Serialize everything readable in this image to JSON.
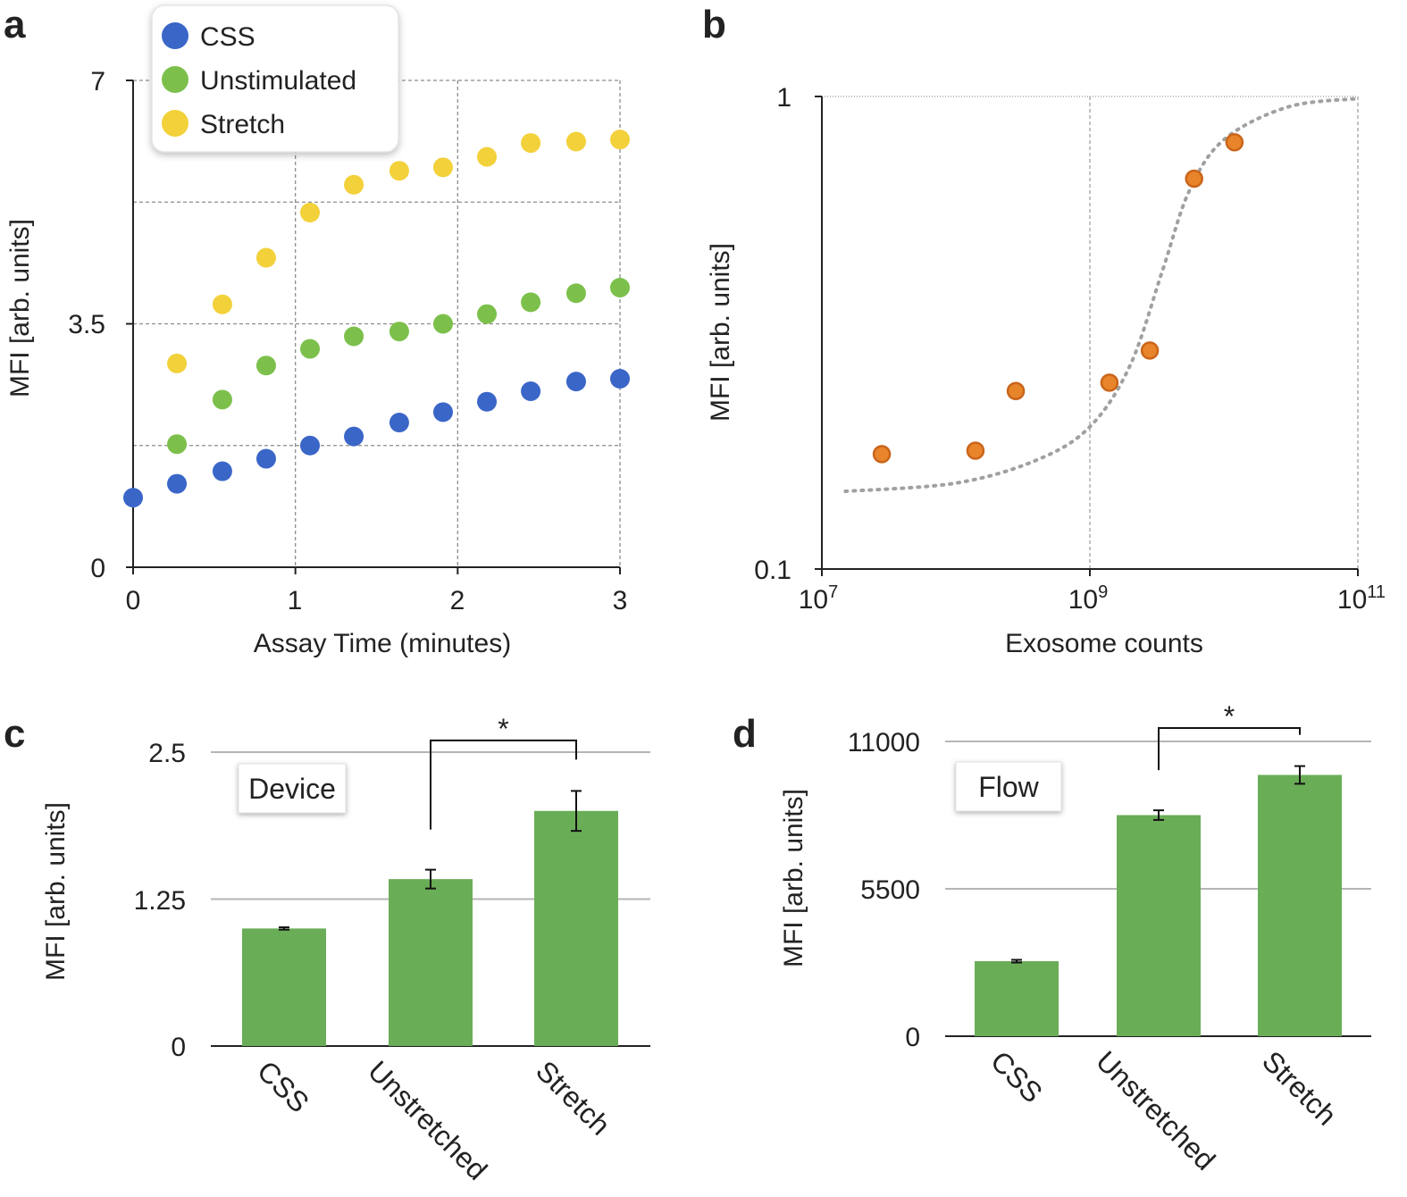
{
  "colors": {
    "css": "#3a66c8",
    "unstimulated": "#7cc04b",
    "stretch": "#f2d13a",
    "exosome": "#e8842a",
    "bar": "#6aad57",
    "axis": "#222222",
    "grid": "#888888"
  },
  "chart_data": [
    {
      "panel": "a",
      "type": "scatter",
      "xlabel": "Assay Time (minutes)",
      "ylabel": "MFI [arb. units]",
      "xlim": [
        0,
        3
      ],
      "ylim": [
        0,
        7
      ],
      "x_ticks": [
        "0",
        "1",
        "2",
        "3"
      ],
      "y_ticks": [
        "0",
        "3.5",
        "7"
      ],
      "legend": [
        "CSS",
        "Unstimulated",
        "Stretch"
      ],
      "x": [
        0,
        0.27,
        0.55,
        0.82,
        1.09,
        1.36,
        1.64,
        1.91,
        2.18,
        2.45,
        2.73,
        3.0
      ],
      "series": [
        {
          "name": "CSS",
          "values": [
            1.0,
            1.2,
            1.38,
            1.56,
            1.75,
            1.88,
            2.08,
            2.23,
            2.38,
            2.53,
            2.67,
            2.71
          ]
        },
        {
          "name": "Unstimulated",
          "values": [
            null,
            1.77,
            2.41,
            2.9,
            3.14,
            3.32,
            3.39,
            3.5,
            3.64,
            3.81,
            3.94,
            4.02
          ]
        },
        {
          "name": "Stretch",
          "values": [
            null,
            2.93,
            3.78,
            4.45,
            5.1,
            5.5,
            5.7,
            5.75,
            5.9,
            6.1,
            6.12,
            6.15
          ]
        }
      ]
    },
    {
      "panel": "b",
      "type": "scatter",
      "xlabel": "Exosome counts",
      "ylabel": "MFI [arb. units]",
      "xscale": "log",
      "yscale": "log",
      "xlim": [
        10000000,
        100000000000
      ],
      "ylim": [
        0.1,
        1
      ],
      "x_ticks": [
        {
          "base": "10",
          "exp": "7"
        },
        {
          "base": "10",
          "exp": "9"
        },
        {
          "base": "10",
          "exp": "11"
        }
      ],
      "y_ticks": [
        "0.1",
        "1"
      ],
      "points": [
        {
          "x": 28000000,
          "y": 0.175
        },
        {
          "x": 140000000,
          "y": 0.178
        },
        {
          "x": 280000000,
          "y": 0.238
        },
        {
          "x": 1400000000,
          "y": 0.248
        },
        {
          "x": 2800000000,
          "y": 0.29
        },
        {
          "x": 6000000000,
          "y": 0.67
        },
        {
          "x": 12000000000,
          "y": 0.8
        }
      ],
      "fit": {
        "style": "dotted",
        "points": [
          {
            "x": 15000000,
            "y": 0.146
          },
          {
            "x": 100000000,
            "y": 0.152
          },
          {
            "x": 400000000,
            "y": 0.17
          },
          {
            "x": 1000000000,
            "y": 0.2
          },
          {
            "x": 2000000000,
            "y": 0.27
          },
          {
            "x": 3500000000,
            "y": 0.43
          },
          {
            "x": 5500000000,
            "y": 0.63
          },
          {
            "x": 10000000000,
            "y": 0.81
          },
          {
            "x": 30000000000,
            "y": 0.95
          },
          {
            "x": 100000000000,
            "y": 0.99
          }
        ]
      }
    },
    {
      "panel": "c",
      "type": "bar",
      "box_label": "Device",
      "ylabel": "MFI [arb. units]",
      "ylim": [
        0,
        2.5
      ],
      "y_ticks": [
        "0",
        "1.25",
        "2.5"
      ],
      "categories": [
        "CSS",
        "Unstretched",
        "Stretch"
      ],
      "values": [
        1.0,
        1.42,
        2.0
      ],
      "errors": [
        0.01,
        0.08,
        0.17
      ],
      "significance": {
        "between": [
          1,
          2
        ],
        "label": "*",
        "level": 2.6
      }
    },
    {
      "panel": "d",
      "type": "bar",
      "box_label": "Flow",
      "ylabel": "MFI [arb. units]",
      "ylim": [
        0,
        11000
      ],
      "y_ticks": [
        "0",
        "5500",
        "11000"
      ],
      "categories": [
        "CSS",
        "Unstretched",
        "Stretch"
      ],
      "values": [
        2800,
        8250,
        9750
      ],
      "errors": [
        50,
        180,
        330
      ],
      "significance": {
        "between": [
          1,
          2
        ],
        "label": "*",
        "level": 11500
      }
    }
  ]
}
